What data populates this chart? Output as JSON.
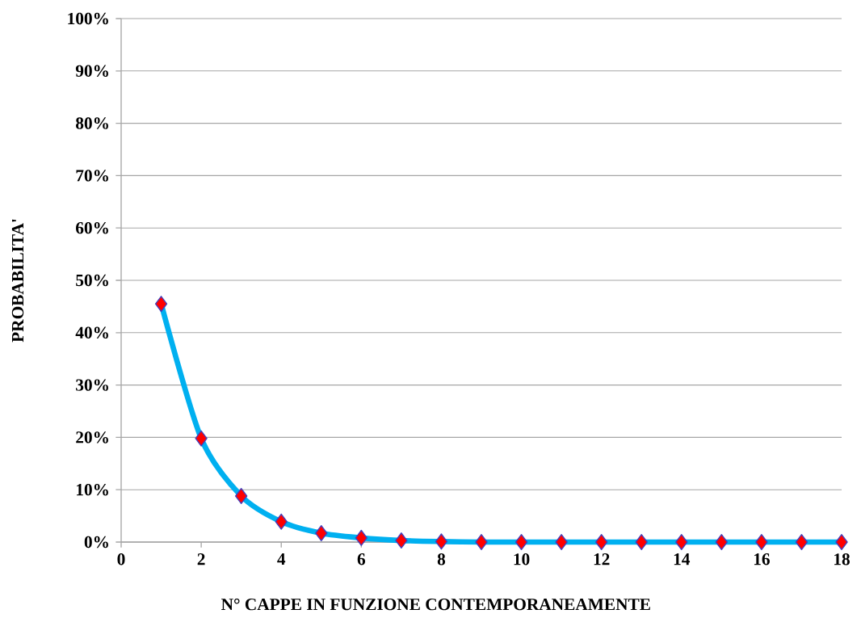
{
  "chart_data": {
    "type": "line",
    "xlabel": "N° CAPPE IN FUNZIONE CONTEMPORANEAMENTE",
    "ylabel": "PROBABILITA'",
    "x": [
      1,
      2,
      3,
      4,
      5,
      6,
      7,
      8,
      9,
      10,
      11,
      12,
      13,
      14,
      15,
      16,
      17,
      18
    ],
    "values": [
      45.5,
      19.8,
      8.8,
      3.9,
      1.7,
      0.8,
      0.3,
      0.1,
      0,
      0,
      0,
      0,
      0,
      0,
      0,
      0,
      0,
      0
    ],
    "color": "#00b0f0",
    "marker": "diamond",
    "grid": "y",
    "xlim": [
      0,
      18
    ],
    "ylim": [
      0,
      100
    ],
    "xticks": [
      0,
      2,
      4,
      6,
      8,
      10,
      12,
      14,
      16,
      18
    ],
    "yticks": [
      {
        "value": 0,
        "label": "0%"
      },
      {
        "value": 10,
        "label": "10%"
      },
      {
        "value": 20,
        "label": "20%"
      },
      {
        "value": 30,
        "label": "30%"
      },
      {
        "value": 40,
        "label": "40%"
      },
      {
        "value": 50,
        "label": "50%"
      },
      {
        "value": 60,
        "label": "60%"
      },
      {
        "value": 70,
        "label": "70%"
      },
      {
        "value": 80,
        "label": "80%"
      },
      {
        "value": 90,
        "label": "90%"
      },
      {
        "value": 100,
        "label": "100%"
      }
    ]
  }
}
